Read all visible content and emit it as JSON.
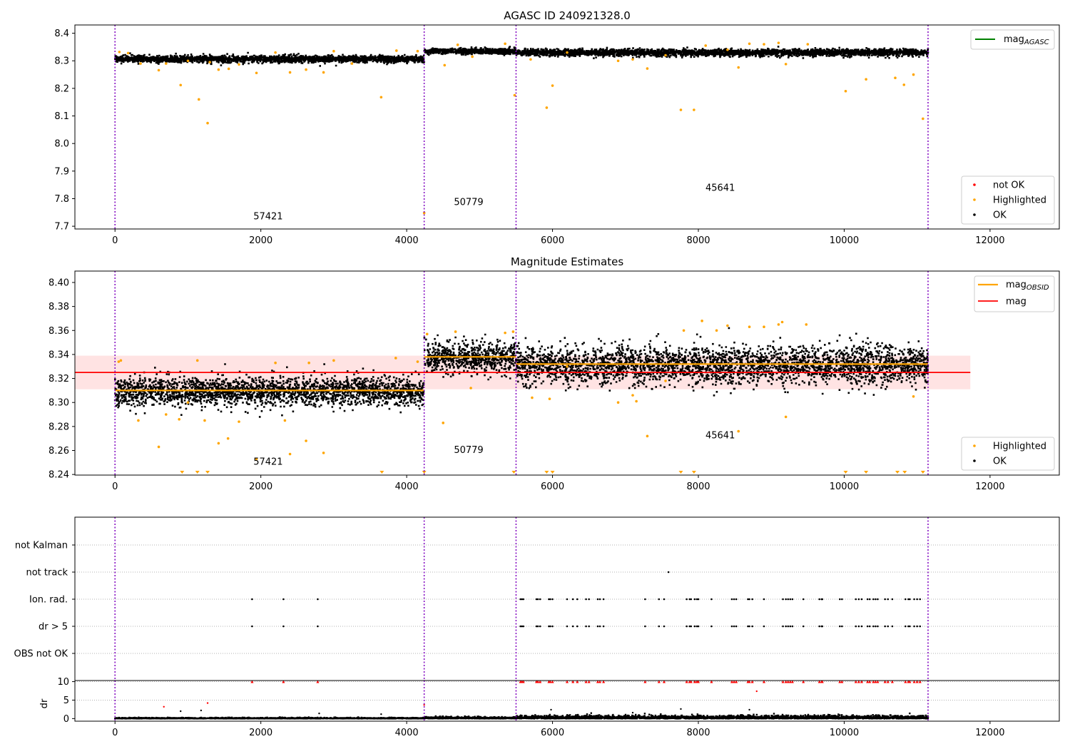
{
  "chart_data": [
    {
      "type": "scatter",
      "title": "AGASC ID 240921328.0",
      "xlim": [
        -550,
        12950
      ],
      "ylim": [
        7.69,
        8.43
      ],
      "x_ticks": [
        0,
        2000,
        4000,
        6000,
        8000,
        10000,
        12000
      ],
      "y_ticks": [
        7.7,
        7.8,
        7.9,
        8.0,
        8.1,
        8.2,
        8.3,
        8.4
      ],
      "obsid_boundaries": [
        0,
        4240,
        5500,
        11150
      ],
      "obsid_labels": [
        {
          "text": "57421",
          "x": 2100,
          "y": 7.725
        },
        {
          "text": "50779",
          "x": 4850,
          "y": 7.777
        },
        {
          "text": "45641",
          "x": 8300,
          "y": 7.828
        }
      ],
      "legend_top": {
        "placement": "top-right",
        "entries": [
          {
            "label": "mag",
            "subscript": "AGASC",
            "color": "#008000"
          }
        ]
      },
      "legend_bottom": {
        "placement": "bottom-right",
        "entries": [
          {
            "label": "not OK",
            "color": "#ff0000"
          },
          {
            "label": "Highlighted",
            "color": "#ffa500"
          },
          {
            "label": "OK",
            "color": "#000000"
          }
        ]
      },
      "segments": [
        {
          "x0": 0,
          "x1": 4240,
          "mean": 8.31,
          "spread": 0.006
        },
        {
          "x0": 4240,
          "x1": 5500,
          "mean": 8.338,
          "spread": 0.005
        },
        {
          "x0": 5500,
          "x1": 11150,
          "mean": 8.333,
          "spread": 0.006
        }
      ],
      "highlighted_points": [
        [
          60,
          8.332
        ],
        [
          180,
          8.328
        ],
        [
          350,
          8.29
        ],
        [
          600,
          8.266
        ],
        [
          700,
          8.29
        ],
        [
          900,
          8.212
        ],
        [
          1000,
          8.3
        ],
        [
          1150,
          8.16
        ],
        [
          1270,
          8.074
        ],
        [
          1300,
          8.295
        ],
        [
          1420,
          8.268
        ],
        [
          1560,
          8.271
        ],
        [
          1700,
          8.287
        ],
        [
          1940,
          8.256
        ],
        [
          2200,
          8.33
        ],
        [
          2400,
          8.258
        ],
        [
          2620,
          8.268
        ],
        [
          2860,
          8.258
        ],
        [
          3000,
          8.335
        ],
        [
          3250,
          8.29
        ],
        [
          3650,
          8.168
        ],
        [
          3860,
          8.337
        ],
        [
          4150,
          8.335
        ],
        [
          4240,
          7.748
        ],
        [
          4520,
          8.284
        ],
        [
          4700,
          8.358
        ],
        [
          4900,
          8.315
        ],
        [
          5350,
          8.362
        ],
        [
          5480,
          8.175
        ],
        [
          5700,
          8.305
        ],
        [
          5920,
          8.13
        ],
        [
          6000,
          8.21
        ],
        [
          6200,
          8.33
        ],
        [
          6900,
          8.3
        ],
        [
          7100,
          8.305
        ],
        [
          7300,
          8.272
        ],
        [
          7550,
          8.32
        ],
        [
          7760,
          8.122
        ],
        [
          7940,
          8.122
        ],
        [
          8100,
          8.355
        ],
        [
          8400,
          8.34
        ],
        [
          8550,
          8.276
        ],
        [
          8700,
          8.362
        ],
        [
          8900,
          8.36
        ],
        [
          9100,
          8.365
        ],
        [
          9200,
          8.288
        ],
        [
          9500,
          8.36
        ],
        [
          10020,
          8.19
        ],
        [
          10300,
          8.233
        ],
        [
          10700,
          8.238
        ],
        [
          10820,
          8.213
        ],
        [
          10950,
          8.25
        ],
        [
          11080,
          8.09
        ]
      ],
      "notok_points": []
    },
    {
      "type": "scatter",
      "title": "Magnitude Estimates",
      "xlim": [
        -550,
        12950
      ],
      "ylim": [
        8.2395,
        8.4095
      ],
      "x_ticks": [
        0,
        2000,
        4000,
        6000,
        8000,
        10000,
        12000
      ],
      "y_ticks": [
        8.24,
        8.26,
        8.28,
        8.3,
        8.32,
        8.34,
        8.36,
        8.38,
        8.4
      ],
      "obsid_boundaries": [
        0,
        4240,
        5500,
        11150
      ],
      "obsid_labels": [
        {
          "text": "57421",
          "x": 2100,
          "y": 8.248
        },
        {
          "text": "50779",
          "x": 4850,
          "y": 8.258
        },
        {
          "text": "45641",
          "x": 8300,
          "y": 8.27
        }
      ],
      "mag": 8.325,
      "mag_band": [
        8.311,
        8.339
      ],
      "mag_band_xrange": [
        -550,
        11730
      ],
      "mag_obsid": [
        {
          "x0": 0,
          "x1": 4240,
          "value": 8.31
        },
        {
          "x0": 4240,
          "x1": 5500,
          "value": 8.338
        },
        {
          "x0": 5500,
          "x1": 11150,
          "value": 8.332
        }
      ],
      "legend_top": {
        "placement": "top-right",
        "entries": [
          {
            "label": "mag",
            "subscript": "OBSID",
            "color": "#ffa500"
          },
          {
            "label": "mag",
            "color": "#ff0000"
          }
        ]
      },
      "legend_bottom": {
        "placement": "bottom-right",
        "entries": [
          {
            "label": "Highlighted",
            "color": "#ffa500"
          },
          {
            "label": "OK",
            "color": "#000000"
          }
        ]
      },
      "segments": [
        {
          "x0": 0,
          "x1": 4240,
          "mean": 8.31,
          "spread": 0.006
        },
        {
          "x0": 4240,
          "x1": 5500,
          "mean": 8.338,
          "spread": 0.006
        },
        {
          "x0": 5500,
          "x1": 11150,
          "mean": 8.332,
          "spread": 0.008
        }
      ],
      "highlighted_points": [
        [
          50,
          8.334
        ],
        [
          80,
          8.335
        ],
        [
          320,
          8.285
        ],
        [
          600,
          8.263
        ],
        [
          700,
          8.29
        ],
        [
          880,
          8.286
        ],
        [
          1000,
          8.3
        ],
        [
          1130,
          8.335
        ],
        [
          1230,
          8.285
        ],
        [
          1420,
          8.266
        ],
        [
          1550,
          8.27
        ],
        [
          1700,
          8.284
        ],
        [
          1940,
          8.253
        ],
        [
          2200,
          8.333
        ],
        [
          2330,
          8.285
        ],
        [
          2400,
          8.257
        ],
        [
          2620,
          8.268
        ],
        [
          2660,
          8.333
        ],
        [
          2860,
          8.258
        ],
        [
          3000,
          8.335
        ],
        [
          3850,
          8.337
        ],
        [
          4150,
          8.334
        ],
        [
          4280,
          8.357
        ],
        [
          4500,
          8.283
        ],
        [
          4670,
          8.359
        ],
        [
          4880,
          8.312
        ],
        [
          5350,
          8.358
        ],
        [
          5460,
          8.359
        ],
        [
          5720,
          8.304
        ],
        [
          5960,
          8.303
        ],
        [
          6200,
          8.33
        ],
        [
          6900,
          8.3
        ],
        [
          7100,
          8.306
        ],
        [
          7150,
          8.301
        ],
        [
          7300,
          8.272
        ],
        [
          7550,
          8.318
        ],
        [
          7800,
          8.36
        ],
        [
          8050,
          8.368
        ],
        [
          8250,
          8.36
        ],
        [
          8400,
          8.364
        ],
        [
          8550,
          8.276
        ],
        [
          8700,
          8.363
        ],
        [
          8900,
          8.363
        ],
        [
          9100,
          8.365
        ],
        [
          9150,
          8.367
        ],
        [
          9200,
          8.288
        ],
        [
          9480,
          8.365
        ],
        [
          10950,
          8.305
        ]
      ],
      "clipped_points_x": [
        920,
        1130,
        1270,
        3660,
        4240,
        5470,
        5920,
        6000,
        7760,
        7940,
        10020,
        10300,
        10730,
        10830,
        11080
      ]
    },
    {
      "type": "scatter",
      "title": "",
      "xlim": [
        -550,
        12950
      ],
      "categories": [
        "not Kalman",
        "not track",
        "Ion. rad.",
        "dr > 5",
        "OBS not OK"
      ],
      "obsid_boundaries": [
        0,
        4240,
        5500,
        11150
      ],
      "flag_points": {
        "not track": [
          7590
        ],
        "Ion. rad.": [
          1880,
          2310,
          2780,
          5560,
          5580,
          5600,
          5780,
          5800,
          5830,
          5950,
          5970,
          6000,
          6200,
          6280,
          6340,
          6460,
          6500,
          6620,
          6650,
          6700,
          7270,
          7460,
          7530,
          7840,
          7880,
          7900,
          7950,
          7980,
          8000,
          8180,
          8460,
          8490,
          8520,
          8680,
          8700,
          8740,
          8900,
          9160,
          9200,
          9230,
          9260,
          9290,
          9440,
          9660,
          9690,
          9700,
          9940,
          9970,
          10160,
          10200,
          10240,
          10320,
          10350,
          10400,
          10430,
          10460,
          10560,
          10600,
          10660,
          10840,
          10880,
          10900,
          10960,
          11000,
          11040
        ],
        "dr > 5": [
          1880,
          2310,
          2780,
          5560,
          5580,
          5600,
          5780,
          5800,
          5830,
          5950,
          5970,
          6000,
          6200,
          6280,
          6340,
          6460,
          6500,
          6620,
          6650,
          6700,
          7270,
          7460,
          7530,
          7840,
          7880,
          7900,
          7950,
          7980,
          8000,
          8180,
          8460,
          8490,
          8520,
          8680,
          8700,
          8740,
          8900,
          9160,
          9200,
          9230,
          9260,
          9290,
          9440,
          9660,
          9690,
          9700,
          9940,
          9970,
          10160,
          10200,
          10240,
          10320,
          10350,
          10400,
          10430,
          10460,
          10560,
          10600,
          10660,
          10840,
          10880,
          10900,
          10960,
          11000,
          11040
        ]
      }
    },
    {
      "type": "scatter",
      "title": "",
      "ylabel": "dr",
      "xlim": [
        -550,
        12950
      ],
      "ylim": [
        -0.7,
        10.3
      ],
      "x_ticks": [
        0,
        2000,
        4000,
        6000,
        8000,
        10000,
        12000
      ],
      "y_ticks": [
        0,
        5,
        10
      ],
      "obsid_boundaries": [
        0,
        4240,
        5500,
        11150
      ],
      "clipped_x": [
        1880,
        2310,
        2780,
        5560,
        5580,
        5600,
        5780,
        5800,
        5830,
        5950,
        5970,
        6000,
        6200,
        6280,
        6340,
        6460,
        6500,
        6620,
        6650,
        6700,
        7270,
        7460,
        7530,
        7840,
        7880,
        7900,
        7950,
        7980,
        8000,
        8180,
        8460,
        8490,
        8520,
        8680,
        8700,
        8740,
        8900,
        9160,
        9200,
        9230,
        9260,
        9290,
        9440,
        9660,
        9690,
        9700,
        9940,
        9970,
        10160,
        10200,
        10240,
        10320,
        10350,
        10400,
        10430,
        10460,
        10560,
        10600,
        10660,
        10840,
        10880,
        10900,
        10960,
        11000,
        11040
      ],
      "red_points": [
        [
          670,
          3.2
        ],
        [
          1270,
          4.2
        ],
        [
          4240,
          3.7
        ],
        [
          8800,
          7.4
        ]
      ],
      "outlier_points": [
        [
          900,
          2.0
        ],
        [
          1180,
          2.2
        ],
        [
          2800,
          1.4
        ],
        [
          3650,
          1.2
        ],
        [
          5980,
          2.4
        ],
        [
          7100,
          1.6
        ],
        [
          7760,
          2.6
        ],
        [
          8700,
          2.4
        ]
      ]
    }
  ]
}
